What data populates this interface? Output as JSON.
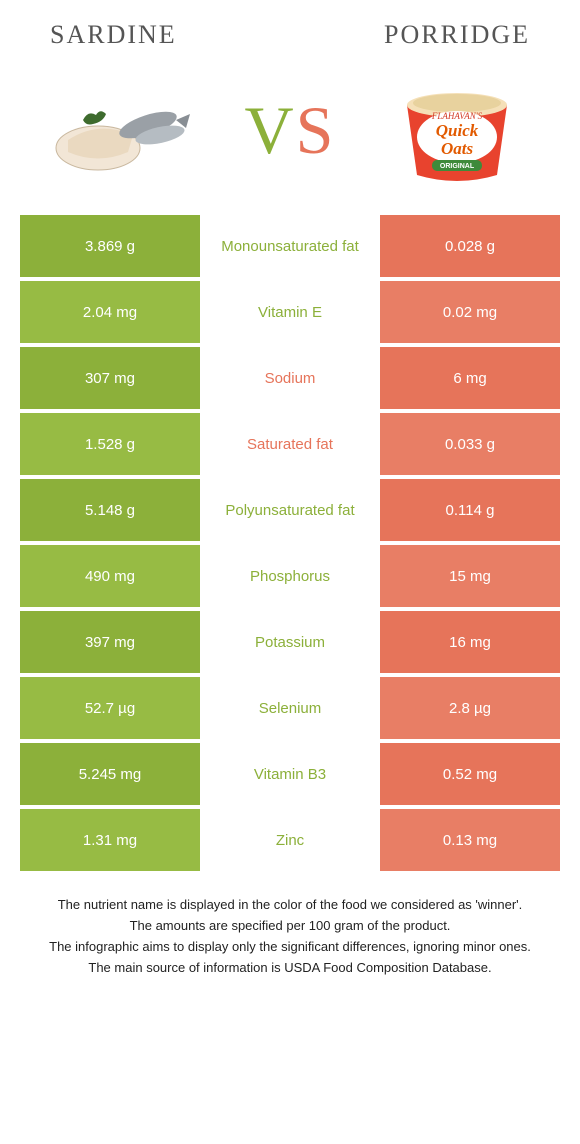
{
  "left_title": "Sardine",
  "right_title": "Porridge",
  "vs_v": "V",
  "vs_s": "S",
  "colors": {
    "left": "#8cb03a",
    "right": "#e6745a",
    "left_alt": "#97bb44",
    "right_alt": "#e87e65",
    "mid_text_left": "#e6745a",
    "mid_text_right": "#8cb03a"
  },
  "rows": [
    {
      "left": "3.869 g",
      "mid": "Monounsaturated fat",
      "right": "0.028 g",
      "winner": "left"
    },
    {
      "left": "2.04 mg",
      "mid": "Vitamin E",
      "right": "0.02 mg",
      "winner": "left"
    },
    {
      "left": "307 mg",
      "mid": "Sodium",
      "right": "6 mg",
      "winner": "right"
    },
    {
      "left": "1.528 g",
      "mid": "Saturated fat",
      "right": "0.033 g",
      "winner": "right"
    },
    {
      "left": "5.148 g",
      "mid": "Polyunsaturated fat",
      "right": "0.114 g",
      "winner": "left"
    },
    {
      "left": "490 mg",
      "mid": "Phosphorus",
      "right": "15 mg",
      "winner": "left"
    },
    {
      "left": "397 mg",
      "mid": "Potassium",
      "right": "16 mg",
      "winner": "left"
    },
    {
      "left": "52.7 µg",
      "mid": "Selenium",
      "right": "2.8 µg",
      "winner": "left"
    },
    {
      "left": "5.245 mg",
      "mid": "Vitamin B3",
      "right": "0.52 mg",
      "winner": "left"
    },
    {
      "left": "1.31 mg",
      "mid": "Zinc",
      "right": "0.13 mg",
      "winner": "left"
    }
  ],
  "footer": [
    "The nutrient name is displayed in the color of the food we considered as 'winner'.",
    "The amounts are specified per 100 gram of the product.",
    "The infographic aims to display only the significant differences, ignoring minor ones.",
    "The main source of information is USDA Food Composition Database."
  ],
  "oats_brand": "FLAHAVAN'S",
  "oats_label1": "Quick",
  "oats_label2": "Oats",
  "oats_variant": "ORIGINAL"
}
